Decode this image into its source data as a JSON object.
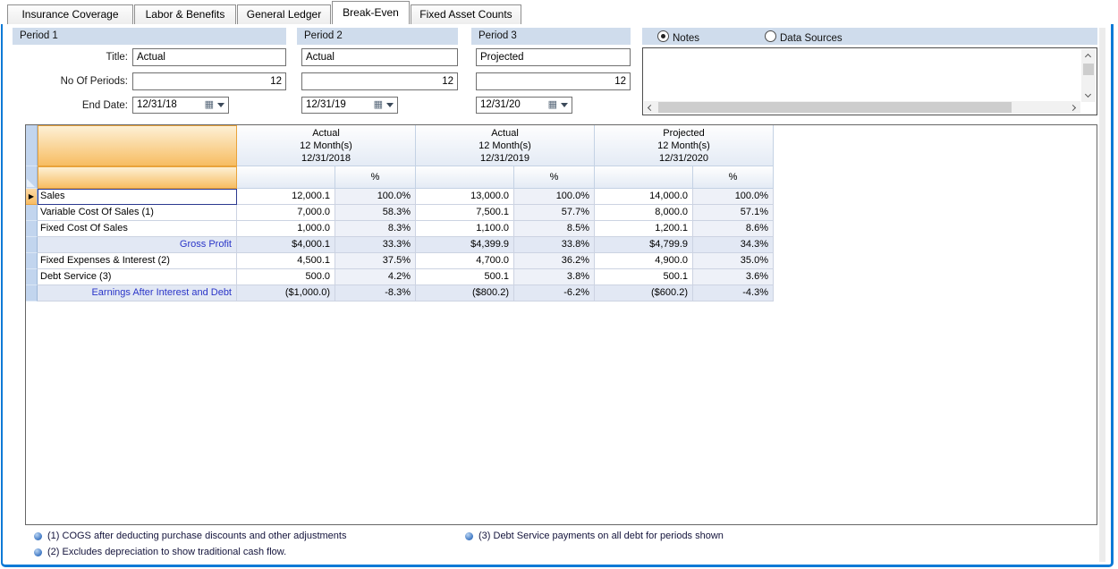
{
  "tabs": {
    "items": [
      {
        "label": "Insurance Coverage",
        "active": false
      },
      {
        "label": "Labor & Benefits",
        "active": false
      },
      {
        "label": "General Ledger",
        "active": false
      },
      {
        "label": "Break-Even",
        "active": true
      },
      {
        "label": "Fixed Asset Counts",
        "active": false
      }
    ]
  },
  "periods": {
    "labels": {
      "title": "Title:",
      "no_of_periods": "No Of Periods:",
      "end_date": "End Date:"
    },
    "panels": [
      {
        "header": "Period 1",
        "title": "Actual",
        "no_of_periods": "12",
        "end_date": "12/31/18"
      },
      {
        "header": "Period 2",
        "title": "Actual",
        "no_of_periods": "12",
        "end_date": "12/31/19"
      },
      {
        "header": "Period 3",
        "title": "Projected",
        "no_of_periods": "12",
        "end_date": "12/31/20"
      }
    ]
  },
  "notes_panel": {
    "options": [
      {
        "label": "Notes",
        "selected": true
      },
      {
        "label": "Data Sources",
        "selected": false
      }
    ],
    "content": ""
  },
  "grid": {
    "percent_header": "%",
    "column_groups": [
      {
        "line1": "Actual",
        "line2": "12 Month(s)",
        "line3": "12/31/2018"
      },
      {
        "line1": "Actual",
        "line2": "12 Month(s)",
        "line3": "12/31/2019"
      },
      {
        "line1": "Projected",
        "line2": "12 Month(s)",
        "line3": "12/31/2020"
      }
    ],
    "rows": [
      {
        "label": "Sales",
        "type": "data",
        "selected": true,
        "values": [
          "12,000.1",
          "100.0%",
          "13,000.0",
          "100.0%",
          "14,000.0",
          "100.0%"
        ]
      },
      {
        "label": "Variable Cost Of Sales (1)",
        "type": "data",
        "selected": false,
        "values": [
          "7,000.0",
          "58.3%",
          "7,500.1",
          "57.7%",
          "8,000.0",
          "57.1%"
        ]
      },
      {
        "label": "Fixed Cost Of Sales",
        "type": "data",
        "selected": false,
        "values": [
          "1,000.0",
          "8.3%",
          "1,100.0",
          "8.5%",
          "1,200.1",
          "8.6%"
        ]
      },
      {
        "label": "Gross Profit",
        "type": "summary",
        "selected": false,
        "values": [
          "$4,000.1",
          "33.3%",
          "$4,399.9",
          "33.8%",
          "$4,799.9",
          "34.3%"
        ]
      },
      {
        "label": "Fixed Expenses & Interest (2)",
        "type": "data",
        "selected": false,
        "values": [
          "4,500.1",
          "37.5%",
          "4,700.0",
          "36.2%",
          "4,900.0",
          "35.0%"
        ]
      },
      {
        "label": "Debt Service (3)",
        "type": "data",
        "selected": false,
        "values": [
          "500.0",
          "4.2%",
          "500.1",
          "3.8%",
          "500.1",
          "3.6%"
        ]
      },
      {
        "label": "Earnings After Interest and Debt",
        "type": "summary",
        "selected": false,
        "values": [
          "($1,000.0)",
          "-8.3%",
          "($800.2)",
          "-6.2%",
          "($600.2)",
          "-4.3%"
        ]
      }
    ]
  },
  "footnotes": [
    {
      "text": "(1) COGS after deducting purchase discounts and other adjustments"
    },
    {
      "text": "(2) Excludes depreciation to show traditional cash flow."
    },
    {
      "text": "(3) Debt Service payments on all debt for periods shown"
    }
  ],
  "colors": {
    "window_border": "#0e7ad6",
    "panel_header_bg": "#cfdcec",
    "grid_orange_top": "#fdf0d5",
    "grid_orange_bottom": "#f7bd62",
    "row_header_bg": "#c2d5ee",
    "percent_col_bg": "#eef1f8",
    "summary_row_bg": "#e2e8f4",
    "summary_text": "#2a35c8",
    "selection_border": "#2b3990",
    "footnote_bullet": "#3f78c4"
  }
}
